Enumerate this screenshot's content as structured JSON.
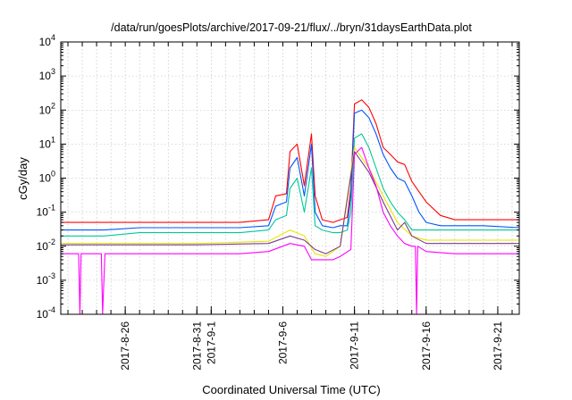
{
  "chart_data": {
    "type": "line",
    "title": "/data/run/goesPlots/archive/2017-09-21/flux/../bryn/31daysEarthData.plot",
    "xlabel": "Coordinated Universal Time (UTC)",
    "ylabel": "cGy/day",
    "yscale": "log",
    "ylim": [
      0.0001,
      10000
    ],
    "xlim": [
      "2017-08-21T12:00",
      "2017-09-22T12:00"
    ],
    "grid": true,
    "legend": "none",
    "x_ticks": [
      "2017-8-26",
      "2017-8-31",
      "2017-9-1",
      "2017-9-6",
      "2017-9-11",
      "2017-9-16",
      "2017-9-21"
    ],
    "x_tick_dates": [
      "2017-08-26",
      "2017-08-31",
      "2017-09-01",
      "2017-09-06",
      "2017-09-11",
      "2017-09-16",
      "2017-09-21"
    ],
    "y_ticks": [
      {
        "base": "10",
        "exp": "-4",
        "value": 0.0001
      },
      {
        "base": "10",
        "exp": "-3",
        "value": 0.001
      },
      {
        "base": "10",
        "exp": "-2",
        "value": 0.01
      },
      {
        "base": "10",
        "exp": "-1",
        "value": 0.1
      },
      {
        "base": "10",
        "exp": "0",
        "value": 1
      },
      {
        "base": "10",
        "exp": "1",
        "value": 10
      },
      {
        "base": "10",
        "exp": "2",
        "value": 100
      },
      {
        "base": "10",
        "exp": "3",
        "value": 1000
      },
      {
        "base": "10",
        "exp": "4",
        "value": 10000
      }
    ],
    "series": [
      {
        "color": "#ff0000",
        "x": [
          "2017-08-21T12:00",
          "2017-08-23T00:00",
          "2017-08-24T00:00",
          "2017-08-24T12:00",
          "2017-08-27T00:00",
          "2017-08-31T00:00",
          "2017-09-03T00:00",
          "2017-09-05T00:00",
          "2017-09-05T12:00",
          "2017-09-06T06:00",
          "2017-09-06T12:00",
          "2017-09-07T00:00",
          "2017-09-07T12:00",
          "2017-09-08T00:00",
          "2017-09-08T06:00",
          "2017-09-08T18:00",
          "2017-09-09T12:00",
          "2017-09-10T00:00",
          "2017-09-10T12:00",
          "2017-09-10T18:00",
          "2017-09-11T00:00",
          "2017-09-11T12:00",
          "2017-09-12T00:00",
          "2017-09-12T12:00",
          "2017-09-13T00:00",
          "2017-09-13T12:00",
          "2017-09-14T00:00",
          "2017-09-14T12:00",
          "2017-09-15T00:00",
          "2017-09-15T12:00",
          "2017-09-16T00:00",
          "2017-09-17T00:00",
          "2017-09-18T00:00",
          "2017-09-20T00:00",
          "2017-09-22T12:00"
        ],
        "y": [
          0.05,
          0.05,
          0.05,
          0.05,
          0.05,
          0.05,
          0.05,
          0.06,
          0.3,
          0.35,
          6,
          10,
          0.6,
          20,
          0.3,
          0.06,
          0.05,
          0.06,
          0.07,
          0.5,
          150,
          200,
          120,
          40,
          8,
          5,
          3,
          2.5,
          0.8,
          0.4,
          0.2,
          0.08,
          0.06,
          0.06,
          0.06
        ]
      },
      {
        "color": "#0055ff",
        "x": [
          "2017-08-21T12:00",
          "2017-08-23T00:00",
          "2017-08-24T00:00",
          "2017-08-24T12:00",
          "2017-08-27T00:00",
          "2017-08-31T00:00",
          "2017-09-03T00:00",
          "2017-09-05T00:00",
          "2017-09-05T12:00",
          "2017-09-06T06:00",
          "2017-09-06T12:00",
          "2017-09-07T00:00",
          "2017-09-07T12:00",
          "2017-09-08T00:00",
          "2017-09-08T06:00",
          "2017-09-08T18:00",
          "2017-09-09T12:00",
          "2017-09-10T00:00",
          "2017-09-10T12:00",
          "2017-09-10T18:00",
          "2017-09-11T00:00",
          "2017-09-11T12:00",
          "2017-09-12T00:00",
          "2017-09-12T12:00",
          "2017-09-13T00:00",
          "2017-09-13T12:00",
          "2017-09-14T00:00",
          "2017-09-14T12:00",
          "2017-09-15T00:00",
          "2017-09-15T12:00",
          "2017-09-16T00:00",
          "2017-09-17T00:00",
          "2017-09-18T00:00",
          "2017-09-20T00:00",
          "2017-09-22T12:00"
        ],
        "y": [
          0.03,
          0.03,
          0.03,
          0.03,
          0.035,
          0.035,
          0.035,
          0.04,
          0.15,
          0.2,
          2,
          4,
          0.3,
          10,
          0.1,
          0.04,
          0.035,
          0.04,
          0.04,
          0.3,
          80,
          100,
          60,
          20,
          5,
          2,
          1,
          0.8,
          0.3,
          0.1,
          0.05,
          0.04,
          0.04,
          0.04,
          0.035
        ]
      },
      {
        "color": "#00c896",
        "x": [
          "2017-08-21T12:00",
          "2017-08-23T00:00",
          "2017-08-24T00:00",
          "2017-08-24T12:00",
          "2017-08-27T00:00",
          "2017-08-31T00:00",
          "2017-09-03T00:00",
          "2017-09-05T00:00",
          "2017-09-05T12:00",
          "2017-09-06T06:00",
          "2017-09-06T12:00",
          "2017-09-07T00:00",
          "2017-09-07T12:00",
          "2017-09-08T00:00",
          "2017-09-08T06:00",
          "2017-09-08T18:00",
          "2017-09-09T12:00",
          "2017-09-10T00:00",
          "2017-09-10T12:00",
          "2017-09-10T18:00",
          "2017-09-11T00:00",
          "2017-09-11T12:00",
          "2017-09-12T00:00",
          "2017-09-12T12:00",
          "2017-09-13T00:00",
          "2017-09-13T12:00",
          "2017-09-14T00:00",
          "2017-09-14T12:00",
          "2017-09-15T00:00",
          "2017-09-15T12:00",
          "2017-09-16T00:00",
          "2017-09-17T00:00",
          "2017-09-18T00:00",
          "2017-09-20T00:00",
          "2017-09-22T12:00"
        ],
        "y": [
          0.02,
          0.02,
          0.02,
          0.02,
          0.025,
          0.025,
          0.025,
          0.03,
          0.06,
          0.08,
          0.5,
          1,
          0.1,
          2,
          0.04,
          0.03,
          0.025,
          0.025,
          0.03,
          0.1,
          15,
          20,
          8,
          2,
          0.5,
          0.2,
          0.1,
          0.06,
          0.03,
          0.03,
          0.03,
          0.03,
          0.03,
          0.03,
          0.03
        ]
      },
      {
        "color": "#e6e600",
        "x": [
          "2017-08-21T12:00",
          "2017-08-24T12:00",
          "2017-08-31T00:00",
          "2017-09-05T00:00",
          "2017-09-06T12:00",
          "2017-09-07T12:00",
          "2017-09-08T06:00",
          "2017-09-09T00:00",
          "2017-09-10T00:00",
          "2017-09-11T00:00",
          "2017-09-12T00:00",
          "2017-09-13T00:00",
          "2017-09-14T00:00",
          "2017-09-15T00:00",
          "2017-09-16T00:00",
          "2017-09-22T12:00"
        ],
        "y": [
          0.012,
          0.012,
          0.012,
          0.014,
          0.03,
          0.02,
          0.006,
          0.005,
          0.01,
          8,
          2,
          0.3,
          0.05,
          0.02,
          0.015,
          0.015
        ]
      },
      {
        "color": "#7a3c8c",
        "x": [
          "2017-08-21T12:00",
          "2017-08-24T12:00",
          "2017-08-31T00:00",
          "2017-09-05T00:00",
          "2017-09-06T12:00",
          "2017-09-07T12:00",
          "2017-09-08T06:00",
          "2017-09-09T00:00",
          "2017-09-10T00:00",
          "2017-09-11T00:00",
          "2017-09-12T00:00",
          "2017-09-13T00:00",
          "2017-09-14T00:00",
          "2017-09-14T12:00",
          "2017-09-15T00:00",
          "2017-09-16T00:00",
          "2017-09-22T12:00"
        ],
        "y": [
          0.011,
          0.011,
          0.011,
          0.012,
          0.02,
          0.015,
          0.008,
          0.006,
          0.01,
          6,
          1.5,
          0.2,
          0.03,
          0.05,
          0.02,
          0.012,
          0.012
        ]
      },
      {
        "color": "#ff00ff",
        "x": [
          "2017-08-21T12:00",
          "2017-08-22T18:00",
          "2017-08-22T20:00",
          "2017-08-22T22:00",
          "2017-08-24T00:00",
          "2017-08-24T08:00",
          "2017-08-24T10:00",
          "2017-08-24T14:00",
          "2017-08-27T00:00",
          "2017-08-31T00:00",
          "2017-09-03T00:00",
          "2017-09-05T00:00",
          "2017-09-06T12:00",
          "2017-09-07T12:00",
          "2017-09-08T00:00",
          "2017-09-08T08:00",
          "2017-09-09T12:00",
          "2017-09-10T00:00",
          "2017-09-10T18:00",
          "2017-09-11T00:00",
          "2017-09-11T12:00",
          "2017-09-12T00:00",
          "2017-09-12T12:00",
          "2017-09-13T00:00",
          "2017-09-13T12:00",
          "2017-09-14T00:00",
          "2017-09-14T12:00",
          "2017-09-15T00:00",
          "2017-09-15T06:00",
          "2017-09-15T08:00",
          "2017-09-15T10:00",
          "2017-09-16T00:00",
          "2017-09-18T00:00",
          "2017-09-22T12:00"
        ],
        "y": [
          0.006,
          0.006,
          0.0001,
          0.006,
          0.006,
          0.006,
          0.0001,
          0.006,
          0.006,
          0.006,
          0.006,
          0.007,
          0.012,
          0.01,
          0.004,
          0.004,
          0.004,
          0.005,
          0.008,
          5,
          8,
          2,
          0.6,
          0.1,
          0.04,
          0.02,
          0.012,
          0.01,
          0.01,
          0.0001,
          0.01,
          0.007,
          0.006,
          0.006
        ]
      }
    ]
  }
}
